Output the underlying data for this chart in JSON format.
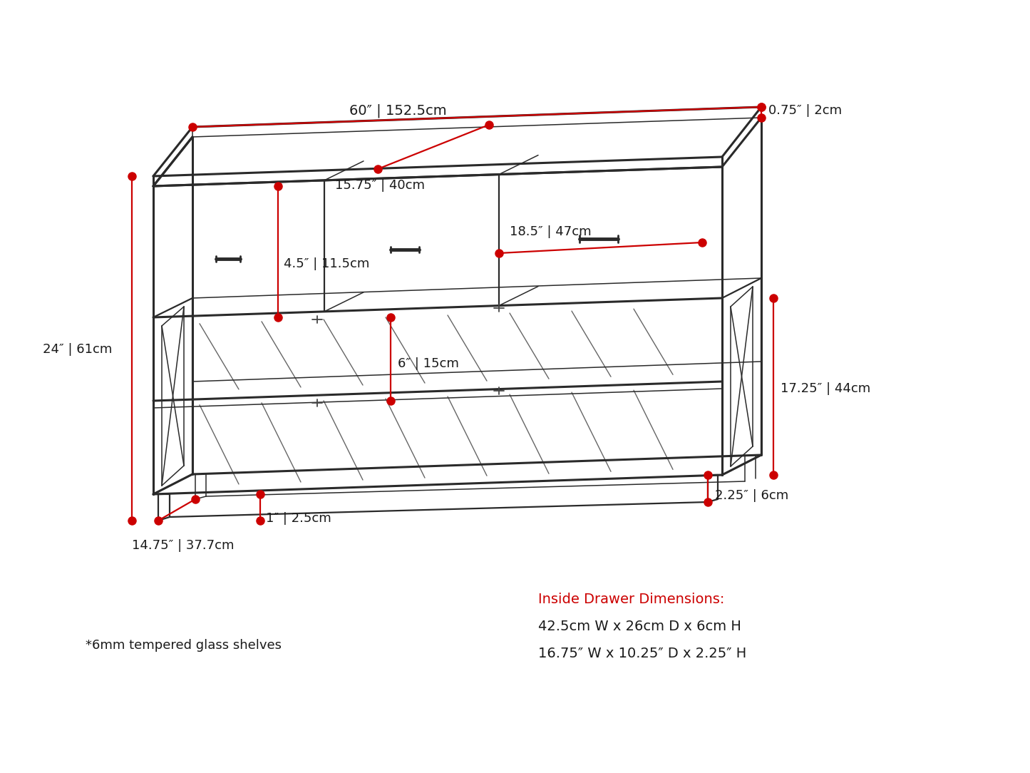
{
  "bg_color": "#ffffff",
  "line_color": "#2a2a2a",
  "red_color": "#cc0000",
  "dot_color": "#cc0000",
  "text_color": "#1a1a1a",
  "fig_width": 14.45,
  "fig_height": 10.84,
  "annotations": {
    "width_60": "60″ | 152.5cm",
    "depth_15_75": "15.75″ | 40cm",
    "height_24": "24″ | 61cm",
    "thickness_0_75": "0.75″ | 2cm",
    "drawer_height_4_5": "4.5″ | 11.5cm",
    "shelf_gap_6": "6″ | 15cm",
    "drawer_width_18_5": "18.5″ | 47cm",
    "shelf_height_17_25": "17.25″ | 44cm",
    "foot_height_1": "1″ | 2.5cm",
    "foot_depth_2_25": "2.25″ | 6cm",
    "depth_14_75": "14.75″ | 37.7cm",
    "glass_note": "*6mm tempered glass shelves",
    "drawer_inside_title": "Inside Drawer Dimensions:",
    "drawer_inside_1": "42.5cm W x 26cm D x 6cm H",
    "drawer_inside_2": "16.75″ W x 10.25″ D x 2.25″ H"
  }
}
